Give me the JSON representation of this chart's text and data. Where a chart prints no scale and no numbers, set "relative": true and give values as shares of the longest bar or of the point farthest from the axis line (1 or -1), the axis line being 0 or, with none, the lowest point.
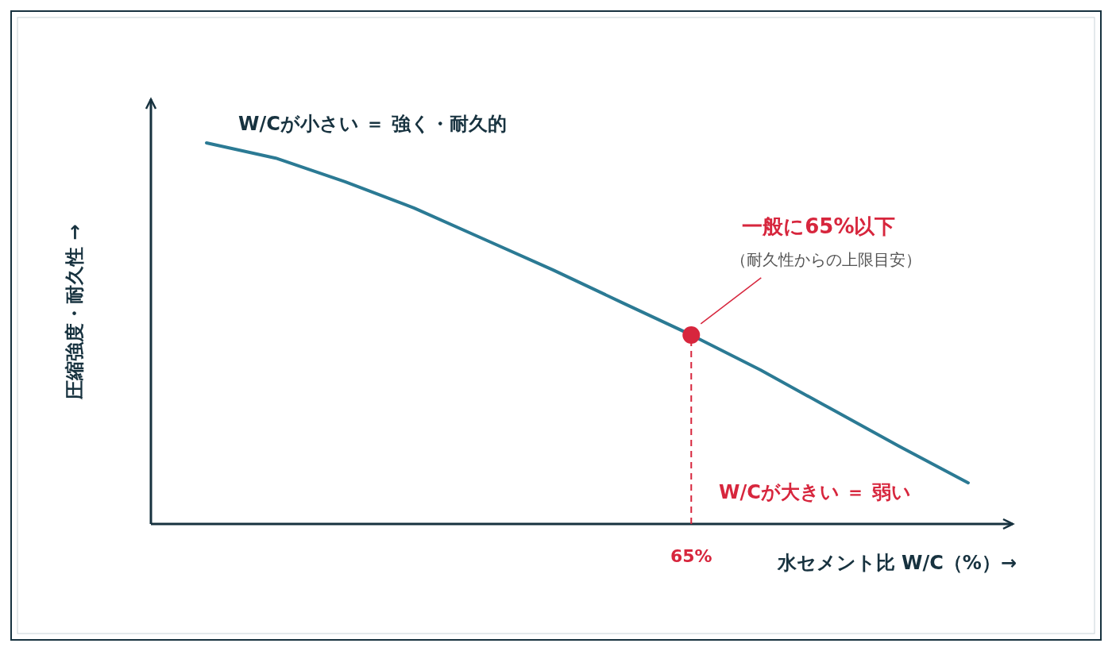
{
  "chart_data": {
    "type": "line",
    "relative": true,
    "xlabel": "水セメント比 W/C（%）→",
    "ylabel": "圧縮強度・耐久性 →",
    "categories": [
      null,
      null,
      null,
      null,
      null,
      null,
      null,
      null,
      null,
      null,
      null,
      null
    ],
    "series": [
      {
        "color": "#2b7a94",
        "values": [
          1.0,
          0.96,
          0.898,
          0.829,
          0.748,
          0.667,
          0.581,
          0.496,
          0.404,
          0.304,
          0.204,
          0.108
        ]
      }
    ],
    "annotations": [
      "W/Cが小さい ＝ 強く・耐久的",
      "一般に65%以下",
      "（耐久性からの上限目安）",
      "W/Cが大きい ＝ 弱い",
      "65%"
    ]
  }
}
